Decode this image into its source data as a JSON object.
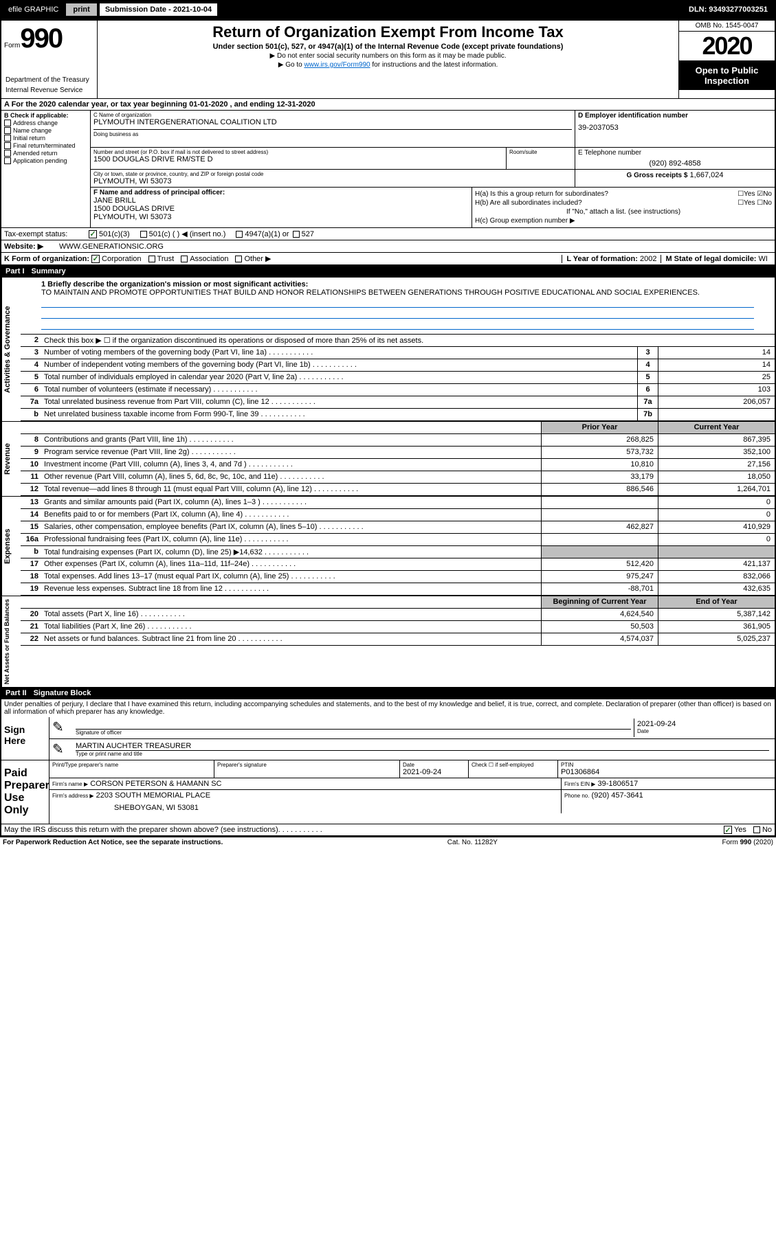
{
  "topbar": {
    "efile": "efile GRAPHIC",
    "print": "print",
    "subdate_label": "Submission Date - 2021-10-04",
    "dln": "DLN: 93493277003251"
  },
  "header": {
    "form_label": "Form",
    "form_num": "990",
    "title": "Return of Organization Exempt From Income Tax",
    "subtitle": "Under section 501(c), 527, or 4947(a)(1) of the Internal Revenue Code (except private foundations)",
    "instr1": "▶ Do not enter social security numbers on this form as it may be made public.",
    "instr2_pre": "▶ Go to ",
    "instr2_link": "www.irs.gov/Form990",
    "instr2_post": " for instructions and the latest information.",
    "dept1": "Department of the Treasury",
    "dept2": "Internal Revenue Service",
    "omb": "OMB No. 1545-0047",
    "year": "2020",
    "open": "Open to Public Inspection"
  },
  "section_a": "A For the 2020 calendar year, or tax year beginning 01-01-2020   , and ending 12-31-2020",
  "col_b": {
    "label": "B Check if applicable:",
    "items": [
      "Address change",
      "Name change",
      "Initial return",
      "Final return/terminated",
      "Amended return",
      "Application pending"
    ]
  },
  "org": {
    "c_label": "C Name of organization",
    "name": "PLYMOUTH INTERGENERATIONAL COALITION LTD",
    "dba_label": "Doing business as",
    "addr_label": "Number and street (or P.O. box if mail is not delivered to street address)",
    "addr": "1500 DOUGLAS DRIVE RM/STE D",
    "room_label": "Room/suite",
    "city_label": "City or town, state or province, country, and ZIP or foreign postal code",
    "city": "PLYMOUTH, WI  53073",
    "d_label": "D Employer identification number",
    "ein": "39-2037053",
    "e_label": "E Telephone number",
    "phone": "(920) 892-4858",
    "g_label": "G Gross receipts $",
    "gross": "1,667,024"
  },
  "f": {
    "label": "F  Name and address of principal officer:",
    "name": "JANE BRILL",
    "addr1": "1500 DOUGLAS DRIVE",
    "addr2": "PLYMOUTH, WI  53073"
  },
  "h": {
    "a": "H(a)  Is this a group return for subordinates?",
    "b": "H(b)  Are all subordinates included?",
    "b_note": "If \"No,\" attach a list. (see instructions)",
    "c": "H(c)  Group exemption number ▶"
  },
  "tax_status": {
    "label": "Tax-exempt status:",
    "opt1": "501(c)(3)",
    "opt2": "501(c) (  ) ◀ (insert no.)",
    "opt3": "4947(a)(1) or",
    "opt4": "527"
  },
  "website": {
    "label": "Website: ▶",
    "val": "WWW.GENERATIONSIC.ORG"
  },
  "k": {
    "label": "K Form of organization:",
    "opts": [
      "Corporation",
      "Trust",
      "Association",
      "Other ▶"
    ]
  },
  "l": {
    "label": "L Year of formation:",
    "val": "2002"
  },
  "m": {
    "label": "M State of legal domicile:",
    "val": "WI"
  },
  "part1": {
    "num": "Part I",
    "title": "Summary"
  },
  "mission": {
    "label": "1  Briefly describe the organization's mission or most significant activities:",
    "text": "TO MAINTAIN AND PROMOTE OPPORTUNITIES THAT BUILD AND HONOR RELATIONSHIPS BETWEEN GENERATIONS THROUGH POSITIVE EDUCATIONAL AND SOCIAL EXPERIENCES."
  },
  "line2": "Check this box ▶ ☐ if the organization discontinued its operations or disposed of more than 25% of its net assets.",
  "governance": [
    {
      "n": "3",
      "d": "Number of voting members of the governing body (Part VI, line 1a)",
      "b": "3",
      "v": "14"
    },
    {
      "n": "4",
      "d": "Number of independent voting members of the governing body (Part VI, line 1b)",
      "b": "4",
      "v": "14"
    },
    {
      "n": "5",
      "d": "Total number of individuals employed in calendar year 2020 (Part V, line 2a)",
      "b": "5",
      "v": "25"
    },
    {
      "n": "6",
      "d": "Total number of volunteers (estimate if necessary)",
      "b": "6",
      "v": "103"
    },
    {
      "n": "7a",
      "d": "Total unrelated business revenue from Part VIII, column (C), line 12",
      "b": "7a",
      "v": "206,057"
    },
    {
      "n": "b",
      "d": "Net unrelated business taxable income from Form 990-T, line 39",
      "b": "7b",
      "v": ""
    }
  ],
  "col_headers": {
    "prior": "Prior Year",
    "current": "Current Year"
  },
  "revenue": [
    {
      "n": "8",
      "d": "Contributions and grants (Part VIII, line 1h)",
      "p": "268,825",
      "c": "867,395"
    },
    {
      "n": "9",
      "d": "Program service revenue (Part VIII, line 2g)",
      "p": "573,732",
      "c": "352,100"
    },
    {
      "n": "10",
      "d": "Investment income (Part VIII, column (A), lines 3, 4, and 7d )",
      "p": "10,810",
      "c": "27,156"
    },
    {
      "n": "11",
      "d": "Other revenue (Part VIII, column (A), lines 5, 6d, 8c, 9c, 10c, and 11e)",
      "p": "33,179",
      "c": "18,050"
    },
    {
      "n": "12",
      "d": "Total revenue—add lines 8 through 11 (must equal Part VIII, column (A), line 12)",
      "p": "886,546",
      "c": "1,264,701"
    }
  ],
  "expenses": [
    {
      "n": "13",
      "d": "Grants and similar amounts paid (Part IX, column (A), lines 1–3 )",
      "p": "",
      "c": "0"
    },
    {
      "n": "14",
      "d": "Benefits paid to or for members (Part IX, column (A), line 4)",
      "p": "",
      "c": "0"
    },
    {
      "n": "15",
      "d": "Salaries, other compensation, employee benefits (Part IX, column (A), lines 5–10)",
      "p": "462,827",
      "c": "410,929"
    },
    {
      "n": "16a",
      "d": "Professional fundraising fees (Part IX, column (A), line 11e)",
      "p": "",
      "c": "0"
    },
    {
      "n": "b",
      "d": "Total fundraising expenses (Part IX, column (D), line 25) ▶14,632",
      "p": "SHADE",
      "c": "SHADE"
    },
    {
      "n": "17",
      "d": "Other expenses (Part IX, column (A), lines 11a–11d, 11f–24e)",
      "p": "512,420",
      "c": "421,137"
    },
    {
      "n": "18",
      "d": "Total expenses. Add lines 13–17 (must equal Part IX, column (A), line 25)",
      "p": "975,247",
      "c": "832,066"
    },
    {
      "n": "19",
      "d": "Revenue less expenses. Subtract line 18 from line 12",
      "p": "-88,701",
      "c": "432,635"
    }
  ],
  "net_headers": {
    "begin": "Beginning of Current Year",
    "end": "End of Year"
  },
  "netassets": [
    {
      "n": "20",
      "d": "Total assets (Part X, line 16)",
      "p": "4,624,540",
      "c": "5,387,142"
    },
    {
      "n": "21",
      "d": "Total liabilities (Part X, line 26)",
      "p": "50,503",
      "c": "361,905"
    },
    {
      "n": "22",
      "d": "Net assets or fund balances. Subtract line 21 from line 20",
      "p": "4,574,037",
      "c": "5,025,237"
    }
  ],
  "side_labels": {
    "gov": "Activities & Governance",
    "rev": "Revenue",
    "exp": "Expenses",
    "net": "Net Assets or Fund Balances"
  },
  "part2": {
    "num": "Part II",
    "title": "Signature Block"
  },
  "sig": {
    "perjury": "Under penalties of perjury, I declare that I have examined this return, including accompanying schedules and statements, and to the best of my knowledge and belief, it is true, correct, and complete. Declaration of preparer (other than officer) is based on all information of which preparer has any knowledge.",
    "sign_here": "Sign Here",
    "sig_officer": "Signature of officer",
    "date_label": "Date",
    "date": "2021-09-24",
    "officer": "MARTIN AUCHTER  TREASURER",
    "type_label": "Type or print name and title"
  },
  "preparer": {
    "label": "Paid Preparer Use Only",
    "print_label": "Print/Type preparer's name",
    "sig_label": "Preparer's signature",
    "date_label": "Date",
    "date": "2021-09-24",
    "check_label": "Check ☐ if self-employed",
    "ptin_label": "PTIN",
    "ptin": "P01306864",
    "firm_label": "Firm's name    ▶",
    "firm": "CORSON PETERSON & HAMANN SC",
    "ein_label": "Firm's EIN ▶",
    "ein": "39-1806517",
    "addr_label": "Firm's address ▶",
    "addr1": "2203 SOUTH MEMORIAL PLACE",
    "addr2": "SHEBOYGAN, WI  53081",
    "phone_label": "Phone no.",
    "phone": "(920) 457-3641"
  },
  "discuss": "May the IRS discuss this return with the preparer shown above? (see instructions)",
  "footer": {
    "paperwork": "For Paperwork Reduction Act Notice, see the separate instructions.",
    "cat": "Cat. No. 11282Y",
    "form": "Form 990 (2020)"
  }
}
